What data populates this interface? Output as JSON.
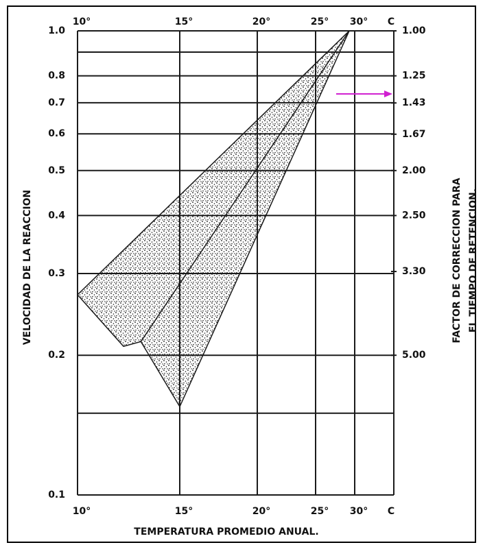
{
  "chart_data": {
    "type": "area",
    "log_y": true,
    "ylabel": "VELOCIDAD DE LA REACCION",
    "y2label": [
      "FACTOR DE CORRECCION PARA",
      "EL TIEMPO DE RETENCION."
    ],
    "xlabel": "TEMPERATURA PROMEDIO ANUAL.",
    "x_unit": "C",
    "xlim": [
      10,
      35
    ],
    "xticks": [
      {
        "value": 10,
        "label": "10°"
      },
      {
        "value": 15,
        "label": "15°"
      },
      {
        "value": 20,
        "label": "20°"
      },
      {
        "value": 25,
        "label": "25°"
      },
      {
        "value": 30,
        "label": "30°"
      }
    ],
    "ylim": [
      0.1,
      1
    ],
    "yticks": [
      0.1,
      0.2,
      0.3,
      0.4,
      0.5,
      0.6,
      0.7,
      0.8,
      {
        "value": 1,
        "label": "1.0"
      }
    ],
    "yminor": [
      0.15,
      0.9
    ],
    "y2lim": [
      10,
      1
    ],
    "y2ticks": [
      {
        "value": 1,
        "label": "1.00"
      },
      1.25,
      1.43,
      1.67,
      {
        "value": 2,
        "label": "2.00"
      },
      {
        "value": 2.5,
        "label": "2.50"
      },
      {
        "value": 3.3,
        "label": "3.30"
      },
      {
        "value": 5,
        "label": "5.00"
      }
    ],
    "grid": true,
    "region": {
      "x": [
        10,
        29.3,
        15,
        13.1,
        12.25
      ],
      "y": [
        0.27,
        1.0,
        0.155,
        0.214,
        0.209
      ],
      "color": "#1a1a1a"
    },
    "divider": {
      "x": [
        13.1,
        29.3
      ],
      "y": [
        0.214,
        1.0
      ]
    }
  }
}
